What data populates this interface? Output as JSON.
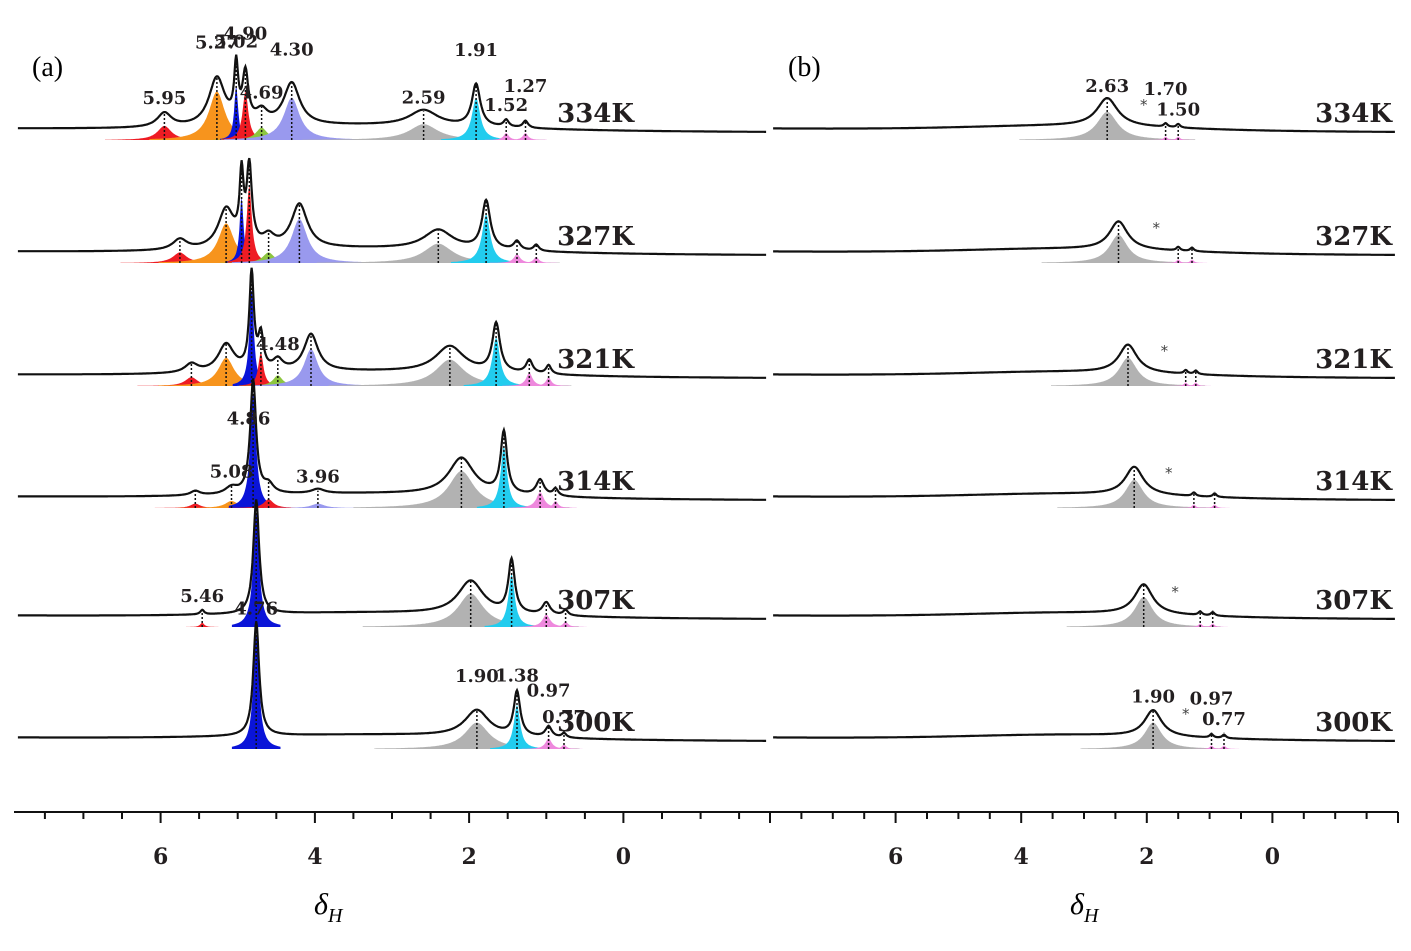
{
  "chart_data": [
    {
      "type": "line",
      "panel": "(a)",
      "xlabel": "δ",
      "xlabel_subscript": "H",
      "x_axis_reversed": true,
      "xlim": [
        7.9,
        -1.9
      ],
      "xticks": [
        6,
        4,
        2,
        0
      ],
      "xtick_labels": [
        "6",
        "4",
        "2",
        "0"
      ],
      "colors": {
        "red": "#ee1c24",
        "orange": "#f7941d",
        "blue": "#0a14d8",
        "green": "#8dc63f",
        "lavender": "#9999ee",
        "gray": "#b2b2b2",
        "cyan": "#22ccee",
        "pink": "#ee88dd"
      },
      "spectra": [
        {
          "temperature": "334K",
          "peaks": [
            {
              "ppm": 5.95,
              "height": 0.16,
              "width": 0.22,
              "color": "red"
            },
            {
              "ppm": 5.27,
              "height": 0.55,
              "width": 0.25,
              "color": "orange"
            },
            {
              "ppm": 5.02,
              "height": 0.62,
              "width": 0.06,
              "color": "blue"
            },
            {
              "ppm": 4.9,
              "height": 0.55,
              "width": 0.09,
              "color": "red"
            },
            {
              "ppm": 4.69,
              "height": 0.14,
              "width": 0.18,
              "color": "green"
            },
            {
              "ppm": 4.3,
              "height": 0.48,
              "width": 0.25,
              "color": "lavender"
            },
            {
              "ppm": 2.59,
              "height": 0.18,
              "width": 0.45,
              "color": "gray"
            },
            {
              "ppm": 1.91,
              "height": 0.48,
              "width": 0.13,
              "color": "cyan"
            },
            {
              "ppm": 1.52,
              "height": 0.08,
              "width": 0.08,
              "color": "pink"
            },
            {
              "ppm": 1.27,
              "height": 0.08,
              "width": 0.08,
              "color": "pink"
            }
          ],
          "labels": [
            {
              "ppm": 5.95,
              "text": "5.95"
            },
            {
              "ppm": 5.27,
              "text": "5.27"
            },
            {
              "ppm": 5.02,
              "text": "5.02"
            },
            {
              "ppm": 4.9,
              "text": "4.90"
            },
            {
              "ppm": 4.69,
              "text": "4.69"
            },
            {
              "ppm": 4.3,
              "text": "4.30"
            },
            {
              "ppm": 2.59,
              "text": "2.59"
            },
            {
              "ppm": 1.91,
              "text": "1.91"
            },
            {
              "ppm": 1.52,
              "text": "1.52"
            },
            {
              "ppm": 1.27,
              "text": "1.27"
            }
          ]
        },
        {
          "temperature": "327K",
          "peaks": [
            {
              "ppm": 5.75,
              "height": 0.12,
              "width": 0.22,
              "color": "red"
            },
            {
              "ppm": 5.15,
              "height": 0.45,
              "width": 0.25,
              "color": "orange"
            },
            {
              "ppm": 4.95,
              "height": 0.75,
              "width": 0.06,
              "color": "blue"
            },
            {
              "ppm": 4.85,
              "height": 0.88,
              "width": 0.08,
              "color": "red"
            },
            {
              "ppm": 4.6,
              "height": 0.12,
              "width": 0.18,
              "color": "green"
            },
            {
              "ppm": 4.2,
              "height": 0.5,
              "width": 0.25,
              "color": "lavender"
            },
            {
              "ppm": 2.4,
              "height": 0.22,
              "width": 0.45,
              "color": "gray"
            },
            {
              "ppm": 1.78,
              "height": 0.55,
              "width": 0.13,
              "color": "cyan"
            },
            {
              "ppm": 1.38,
              "height": 0.1,
              "width": 0.1,
              "color": "pink"
            },
            {
              "ppm": 1.13,
              "height": 0.07,
              "width": 0.08,
              "color": "pink"
            }
          ],
          "labels": []
        },
        {
          "temperature": "321K",
          "peaks": [
            {
              "ppm": 5.6,
              "height": 0.1,
              "width": 0.2,
              "color": "red"
            },
            {
              "ppm": 5.15,
              "height": 0.32,
              "width": 0.25,
              "color": "orange"
            },
            {
              "ppm": 4.82,
              "height": 1.1,
              "width": 0.07,
              "color": "blue"
            },
            {
              "ppm": 4.7,
              "height": 0.38,
              "width": 0.08,
              "color": "red"
            },
            {
              "ppm": 4.48,
              "height": 0.12,
              "width": 0.15,
              "color": "green"
            },
            {
              "ppm": 4.05,
              "height": 0.42,
              "width": 0.22,
              "color": "lavender"
            },
            {
              "ppm": 2.25,
              "height": 0.3,
              "width": 0.45,
              "color": "gray"
            },
            {
              "ppm": 1.65,
              "height": 0.55,
              "width": 0.12,
              "color": "cyan"
            },
            {
              "ppm": 1.22,
              "height": 0.15,
              "width": 0.1,
              "color": "pink"
            },
            {
              "ppm": 0.97,
              "height": 0.1,
              "width": 0.08,
              "color": "pink"
            }
          ],
          "labels": [
            {
              "ppm": 4.48,
              "text": "4.48"
            }
          ]
        },
        {
          "temperature": "314K",
          "peaks": [
            {
              "ppm": 5.55,
              "height": 0.05,
              "width": 0.15,
              "color": "red"
            },
            {
              "ppm": 5.08,
              "height": 0.08,
              "width": 0.2,
              "color": "orange"
            },
            {
              "ppm": 4.8,
              "height": 1.3,
              "width": 0.09,
              "color": "blue"
            },
            {
              "ppm": 4.6,
              "height": 0.1,
              "width": 0.15,
              "color": "red"
            },
            {
              "ppm": 3.96,
              "height": 0.05,
              "width": 0.2,
              "color": "lavender"
            },
            {
              "ppm": 2.1,
              "height": 0.42,
              "width": 0.4,
              "color": "gray"
            },
            {
              "ppm": 1.55,
              "height": 0.7,
              "width": 0.1,
              "color": "cyan"
            },
            {
              "ppm": 1.08,
              "height": 0.18,
              "width": 0.12,
              "color": "pink"
            },
            {
              "ppm": 0.88,
              "height": 0.08,
              "width": 0.08,
              "color": "pink"
            }
          ],
          "labels": [
            {
              "ppm": 5.08,
              "text": "5.08"
            },
            {
              "ppm": 4.86,
              "text": "4.86"
            },
            {
              "ppm": 3.96,
              "text": "3.96"
            }
          ]
        },
        {
          "temperature": "307K",
          "peaks": [
            {
              "ppm": 5.46,
              "height": 0.05,
              "width": 0.06,
              "color": "red"
            },
            {
              "ppm": 4.76,
              "height": 1.3,
              "width": 0.09,
              "color": "blue"
            },
            {
              "ppm": 1.98,
              "height": 0.38,
              "width": 0.4,
              "color": "gray"
            },
            {
              "ppm": 1.45,
              "height": 0.6,
              "width": 0.1,
              "color": "cyan"
            },
            {
              "ppm": 1.0,
              "height": 0.14,
              "width": 0.12,
              "color": "pink"
            },
            {
              "ppm": 0.75,
              "height": 0.06,
              "width": 0.08,
              "color": "pink"
            }
          ],
          "labels": [
            {
              "ppm": 5.46,
              "text": "5.46"
            }
          ]
        },
        {
          "temperature": "300K",
          "peaks": [
            {
              "ppm": 4.76,
              "height": 1.3,
              "width": 0.09,
              "color": "blue"
            },
            {
              "ppm": 1.9,
              "height": 0.3,
              "width": 0.38,
              "color": "gray"
            },
            {
              "ppm": 1.38,
              "height": 0.5,
              "width": 0.1,
              "color": "cyan"
            },
            {
              "ppm": 0.97,
              "height": 0.12,
              "width": 0.1,
              "color": "pink"
            },
            {
              "ppm": 0.77,
              "height": 0.05,
              "width": 0.07,
              "color": "pink"
            }
          ],
          "labels": [
            {
              "ppm": 4.76,
              "text": "4.76"
            },
            {
              "ppm": 1.9,
              "text": "1.90"
            },
            {
              "ppm": 1.38,
              "text": "1.38"
            },
            {
              "ppm": 0.97,
              "text": "0.97"
            },
            {
              "ppm": 0.77,
              "text": "0.77"
            }
          ]
        }
      ]
    },
    {
      "type": "line",
      "panel": "(b)",
      "xlabel": "δ",
      "xlabel_subscript": "H",
      "x_axis_reversed": true,
      "xlim": [
        7.9,
        -1.9
      ],
      "xticks": [
        6,
        4,
        2,
        0
      ],
      "xtick_labels": [
        "6",
        "4",
        "2",
        "0"
      ],
      "annotation_marker": "*",
      "spectra": [
        {
          "temperature": "334K",
          "star_ppm": 2.05,
          "peaks": [
            {
              "ppm": 2.63,
              "height": 0.32,
              "width": 0.4,
              "color": "gray"
            },
            {
              "ppm": 1.7,
              "height": 0.04,
              "width": 0.07,
              "color": "pink"
            },
            {
              "ppm": 1.5,
              "height": 0.04,
              "width": 0.07,
              "color": "pink"
            }
          ],
          "labels": [
            {
              "ppm": 2.63,
              "text": "2.63"
            },
            {
              "ppm": 1.7,
              "text": "1.70"
            },
            {
              "ppm": 1.5,
              "text": "1.50"
            }
          ]
        },
        {
          "temperature": "327K",
          "star_ppm": 1.85,
          "peaks": [
            {
              "ppm": 2.45,
              "height": 0.32,
              "width": 0.35,
              "color": "gray"
            },
            {
              "ppm": 1.5,
              "height": 0.04,
              "width": 0.07,
              "color": "pink"
            },
            {
              "ppm": 1.28,
              "height": 0.04,
              "width": 0.07,
              "color": "pink"
            }
          ],
          "labels": []
        },
        {
          "temperature": "321K",
          "star_ppm": 1.72,
          "peaks": [
            {
              "ppm": 2.3,
              "height": 0.32,
              "width": 0.35,
              "color": "gray"
            },
            {
              "ppm": 1.38,
              "height": 0.04,
              "width": 0.07,
              "color": "pink"
            },
            {
              "ppm": 1.22,
              "height": 0.04,
              "width": 0.07,
              "color": "pink"
            }
          ],
          "labels": []
        },
        {
          "temperature": "314K",
          "star_ppm": 1.65,
          "peaks": [
            {
              "ppm": 2.2,
              "height": 0.32,
              "width": 0.35,
              "color": "gray"
            },
            {
              "ppm": 1.25,
              "height": 0.04,
              "width": 0.07,
              "color": "pink"
            },
            {
              "ppm": 0.92,
              "height": 0.04,
              "width": 0.07,
              "color": "pink"
            }
          ],
          "labels": []
        },
        {
          "temperature": "307K",
          "star_ppm": 1.55,
          "peaks": [
            {
              "ppm": 2.05,
              "height": 0.34,
              "width": 0.35,
              "color": "gray"
            },
            {
              "ppm": 1.15,
              "height": 0.04,
              "width": 0.07,
              "color": "pink"
            },
            {
              "ppm": 0.95,
              "height": 0.04,
              "width": 0.07,
              "color": "pink"
            }
          ],
          "labels": []
        },
        {
          "temperature": "300K",
          "star_ppm": 1.38,
          "peaks": [
            {
              "ppm": 1.9,
              "height": 0.3,
              "width": 0.33,
              "color": "gray"
            },
            {
              "ppm": 0.97,
              "height": 0.04,
              "width": 0.07,
              "color": "pink"
            },
            {
              "ppm": 0.77,
              "height": 0.04,
              "width": 0.07,
              "color": "pink"
            }
          ],
          "labels": [
            {
              "ppm": 1.9,
              "text": "1.90"
            },
            {
              "ppm": 0.97,
              "text": "0.97"
            },
            {
              "ppm": 0.77,
              "text": "0.77"
            }
          ]
        }
      ]
    }
  ]
}
